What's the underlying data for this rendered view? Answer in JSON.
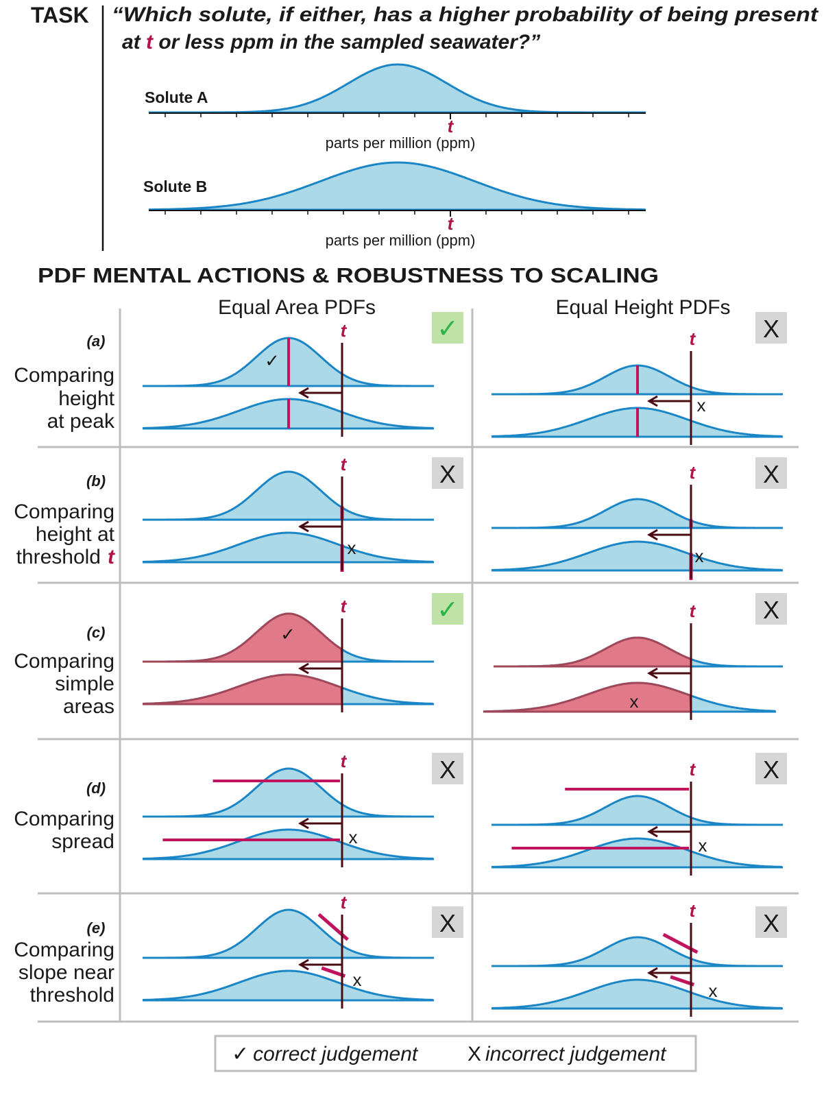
{
  "task": {
    "label": "TASK",
    "question_line1": "“Which solute, if either, has a higher probability of being present",
    "question_line2_pre": "at ",
    "question_line2_var": "t",
    "question_line2_post": " or less ppm in the sampled seawater?”",
    "solutes": [
      {
        "name": "Solute A",
        "threshold_label": "t",
        "axis_label": "parts per million (ppm)",
        "spread": "narrow"
      },
      {
        "name": "Solute B",
        "threshold_label": "t",
        "axis_label": "parts per million (ppm)",
        "spread": "wide"
      }
    ]
  },
  "section_title": "PDF MENTAL ACTIONS & ROBUSTNESS TO SCALING",
  "columns": [
    "Equal Area PDFs",
    "Equal Height PDFs"
  ],
  "threshold_label": "t",
  "rows": [
    {
      "id": "(a)",
      "lines": [
        "Comparing",
        "height",
        "at peak"
      ],
      "action": "peak",
      "verdicts": [
        "correct",
        "incorrect"
      ],
      "marks": [
        "✓",
        "x"
      ]
    },
    {
      "id": "(b)",
      "lines": [
        "Comparing",
        "height at",
        "threshold"
      ],
      "line_var": "t",
      "action": "threshold",
      "verdicts": [
        "incorrect",
        "incorrect"
      ],
      "marks": [
        "x",
        "x"
      ]
    },
    {
      "id": "(c)",
      "lines": [
        "Comparing",
        "simple",
        "areas"
      ],
      "action": "area",
      "verdicts": [
        "correct",
        "incorrect"
      ],
      "marks": [
        "✓",
        "x"
      ]
    },
    {
      "id": "(d)",
      "lines": [
        "Comparing",
        "spread"
      ],
      "action": "spread",
      "verdicts": [
        "incorrect",
        "incorrect"
      ],
      "marks": [
        "x",
        "x"
      ]
    },
    {
      "id": "(e)",
      "lines": [
        "Comparing",
        "slope near",
        "threshold"
      ],
      "action": "slope",
      "verdicts": [
        "incorrect",
        "incorrect"
      ],
      "marks": [
        "x",
        "x"
      ]
    }
  ],
  "badges": {
    "correct": "✓",
    "incorrect": "X"
  },
  "legend": {
    "correct_symbol": "✓",
    "correct_label": "correct judgement",
    "incorrect_symbol": "X",
    "incorrect_label": "incorrect judgement"
  },
  "colors": {
    "curve": "#1b86c6",
    "fill": "#acd9e7",
    "highlight": "#c0145e",
    "threshold": "#4a0b12",
    "area_fill": "#e07a88",
    "area_edge": "#a0475a",
    "correct_bg": "#bfe3a6",
    "correct_fg": "#2fb34a",
    "incorrect_bg": "#d6d6d6",
    "grid": "#bdbdbd",
    "t_label": "#b0124a"
  }
}
